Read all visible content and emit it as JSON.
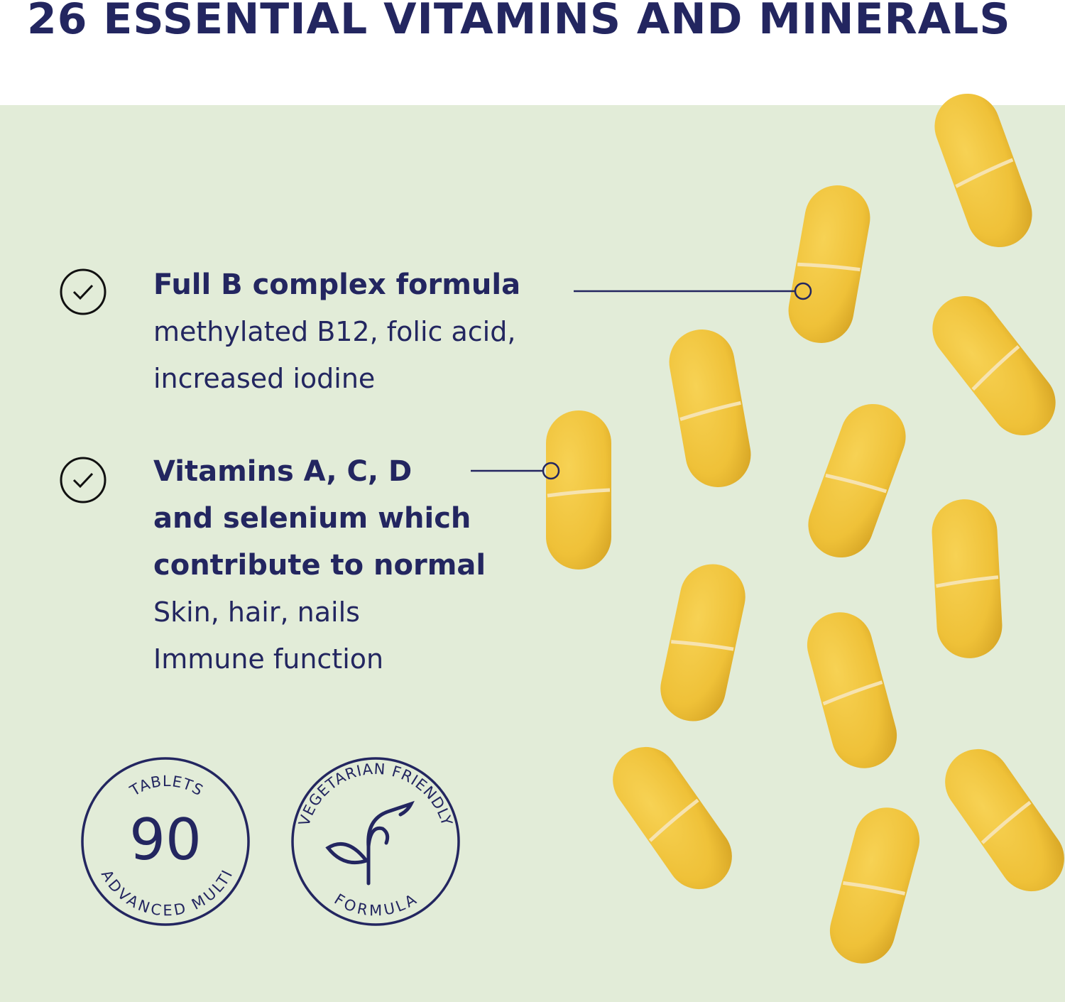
{
  "header": {
    "title": "26 ESSENTIAL VITAMINS AND MINERALS"
  },
  "features": [
    {
      "heading": [
        "Full B complex formula"
      ],
      "details": [
        "methylated B12, folic acid,",
        "increased iodine"
      ],
      "icon": "check-circle-icon"
    },
    {
      "heading": [
        "Vitamins A, C, D",
        "and selenium which",
        "contribute to normal"
      ],
      "details": [
        "Skin, hair, nails",
        "Immune function"
      ],
      "icon": "check-circle-icon"
    }
  ],
  "badges": {
    "tablets": {
      "top": "TABLETS",
      "number": "90",
      "bottom": "ADVANCED MULTI"
    },
    "vegetarian": {
      "top": "VEGETARIAN FRIENDLY",
      "bottom": "FORMULA",
      "icon": "leaf-sprout-icon"
    }
  },
  "colors": {
    "navy": "#232660",
    "background": "#e2ecd8",
    "tablet": "#f1c63c"
  }
}
